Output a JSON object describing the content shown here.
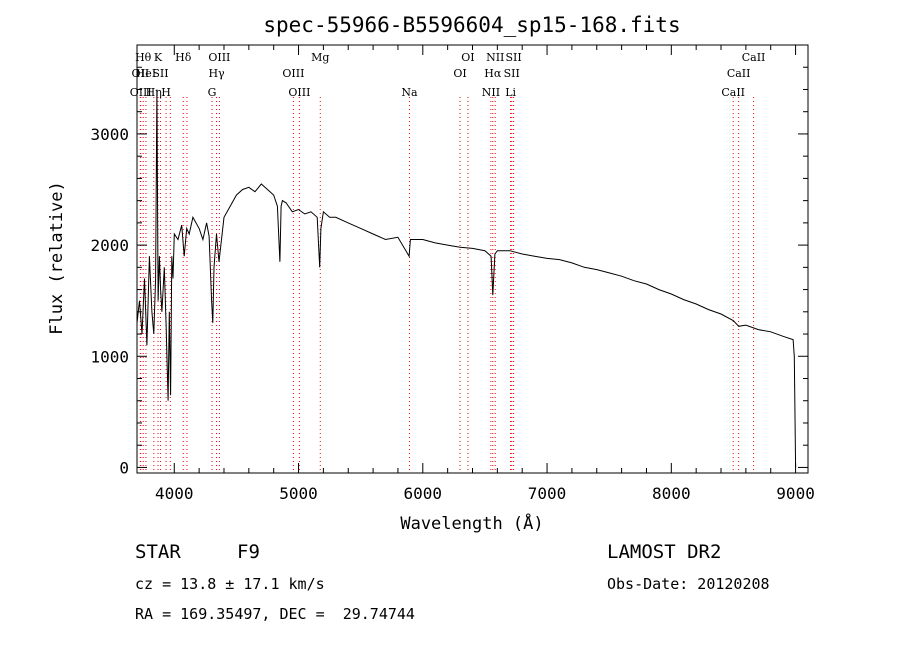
{
  "chart_data": {
    "type": "line",
    "title": "spec-55966-B5596604_sp15-168.fits",
    "xlabel": "Wavelength (Å)",
    "ylabel": "Flux (relative)",
    "xlim": [
      3700,
      9100
    ],
    "ylim": [
      -50,
      3800
    ],
    "x_ticks": [
      4000,
      5000,
      6000,
      7000,
      8000,
      9000
    ],
    "y_ticks": [
      0,
      1000,
      2000,
      3000
    ],
    "grid": false,
    "series": [
      {
        "x": [
          3700,
          3720,
          3740,
          3760,
          3780,
          3800,
          3820,
          3835,
          3850,
          3860,
          3870,
          3880,
          3890,
          3900,
          3920,
          3935,
          3950,
          3960,
          3970,
          3980,
          3990,
          4000,
          4030,
          4060,
          4080,
          4100,
          4120,
          4150,
          4200,
          4230,
          4260,
          4280,
          4300,
          4310,
          4320,
          4340,
          4360,
          4380,
          4400,
          4450,
          4500,
          4550,
          4600,
          4650,
          4700,
          4750,
          4800,
          4830,
          4850,
          4860,
          4870,
          4900,
          4950,
          5000,
          5050,
          5100,
          5150,
          5170,
          5180,
          5200,
          5250,
          5300,
          5400,
          5500,
          5600,
          5700,
          5800,
          5890,
          5900,
          6000,
          6100,
          6200,
          6300,
          6400,
          6500,
          6550,
          6563,
          6580,
          6600,
          6700,
          6800,
          6900,
          7000,
          7100,
          7200,
          7300,
          7400,
          7500,
          7600,
          7700,
          7800,
          7900,
          8000,
          8100,
          8200,
          8300,
          8400,
          8500,
          8542,
          8600,
          8700,
          8800,
          8900,
          8980,
          8990,
          9000
        ],
        "y": [
          1300,
          1500,
          1200,
          1700,
          1100,
          1900,
          1400,
          1200,
          1700,
          3400,
          1500,
          1900,
          1600,
          1400,
          1800,
          1250,
          600,
          1400,
          650,
          1900,
          1700,
          2100,
          2050,
          2180,
          1900,
          2150,
          2100,
          2250,
          2150,
          2050,
          2200,
          2080,
          1500,
          1300,
          1800,
          2100,
          1850,
          2050,
          2250,
          2350,
          2450,
          2500,
          2520,
          2480,
          2550,
          2500,
          2450,
          2350,
          1850,
          2350,
          2400,
          2380,
          2300,
          2320,
          2280,
          2300,
          2250,
          1800,
          2150,
          2300,
          2250,
          2250,
          2200,
          2150,
          2100,
          2050,
          2070,
          1900,
          2050,
          2050,
          2020,
          2000,
          1980,
          1970,
          1950,
          1900,
          1550,
          1920,
          1950,
          1950,
          1920,
          1900,
          1880,
          1870,
          1840,
          1800,
          1780,
          1750,
          1720,
          1680,
          1650,
          1600,
          1560,
          1510,
          1470,
          1420,
          1380,
          1320,
          1270,
          1280,
          1240,
          1220,
          1180,
          1150,
          1000,
          0
        ]
      }
    ],
    "line_markers": [
      {
        "wavelength": 3727,
        "label": "OII",
        "row": 2
      },
      {
        "wavelength": 3730,
        "label": "OIII",
        "row": 3
      },
      {
        "wavelength": 3750,
        "label": "Hθ",
        "row": 1
      },
      {
        "wavelength": 3772,
        "label": "HeI",
        "row": 2
      },
      {
        "wavelength": 3835,
        "label": "Hη",
        "row": 3
      },
      {
        "wavelength": 3869,
        "label": "K",
        "row": 1
      },
      {
        "wavelength": 3889,
        "label": "SII",
        "row": 2
      },
      {
        "wavelength": 3934,
        "label": "H",
        "row": 3
      },
      {
        "wavelength": 3968,
        "label": "",
        "row": 0
      },
      {
        "wavelength": 4072,
        "label": "Hδ",
        "row": 1
      },
      {
        "wavelength": 4102,
        "label": "",
        "row": 0
      },
      {
        "wavelength": 4304,
        "label": "G",
        "row": 3
      },
      {
        "wavelength": 4340,
        "label": "Hγ",
        "row": 2
      },
      {
        "wavelength": 4363,
        "label": "OIII",
        "row": 1
      },
      {
        "wavelength": 4959,
        "label": "OIII",
        "row": 2
      },
      {
        "wavelength": 5007,
        "label": "OIII",
        "row": 3
      },
      {
        "wavelength": 5175,
        "label": "Mg",
        "row": 1
      },
      {
        "wavelength": 5893,
        "label": "Na",
        "row": 3
      },
      {
        "wavelength": 6300,
        "label": "OI",
        "row": 2
      },
      {
        "wavelength": 6363,
        "label": "OI",
        "row": 1
      },
      {
        "wavelength": 6548,
        "label": "NII",
        "row": 3
      },
      {
        "wavelength": 6563,
        "label": "Hα",
        "row": 2
      },
      {
        "wavelength": 6583,
        "label": "NII",
        "row": 1
      },
      {
        "wavelength": 6707,
        "label": "Li",
        "row": 3
      },
      {
        "wavelength": 6716,
        "label": "SII",
        "row": 2
      },
      {
        "wavelength": 6731,
        "label": "SII",
        "row": 1
      },
      {
        "wavelength": 8498,
        "label": "CaII",
        "row": 3
      },
      {
        "wavelength": 8542,
        "label": "CaII",
        "row": 2
      },
      {
        "wavelength": 8662,
        "label": "CaII",
        "row": 1
      }
    ]
  },
  "info": {
    "object_class": "STAR",
    "subclass": "F9",
    "survey": "LAMOST DR2",
    "cz": "cz = 13.8 ± 17.1 km/s",
    "obs_date": "Obs-Date: 20120208",
    "coords": "RA = 169.35497, DEC =  29.74744"
  },
  "colors": {
    "spectrum": "#000000",
    "marker_line": "#ff0000"
  }
}
